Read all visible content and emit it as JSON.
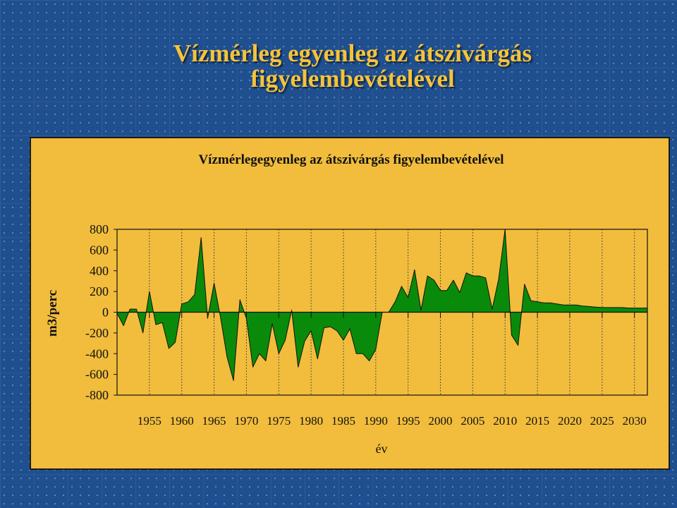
{
  "slide": {
    "title_line1": "Vízmérleg egyenleg az átszivárgás",
    "title_line2": "figyelembevételével"
  },
  "colors": {
    "background": "#1f4f8e",
    "title": "#f5c33a",
    "panel": "#f2bd3c",
    "area_fill": "#0a8a0a"
  },
  "chart_data": {
    "type": "area",
    "title": "Vízmérlegegyenleg az átszivárgás figyelembevételével",
    "xlabel": "év",
    "ylabel": "m3/perc",
    "xlim": [
      1950,
      2032
    ],
    "ylim": [
      -800,
      800
    ],
    "xticks": [
      1955,
      1960,
      1965,
      1970,
      1975,
      1980,
      1985,
      1990,
      1995,
      2000,
      2005,
      2010,
      2015,
      2020,
      2025,
      2030
    ],
    "yticks": [
      800,
      600,
      400,
      200,
      0,
      -200,
      -400,
      -600,
      -800
    ],
    "grid": true,
    "legend": "none",
    "x": [
      1950,
      1951,
      1952,
      1953,
      1954,
      1955,
      1956,
      1957,
      1958,
      1959,
      1960,
      1961,
      1962,
      1963,
      1964,
      1965,
      1966,
      1967,
      1968,
      1969,
      1970,
      1971,
      1972,
      1973,
      1974,
      1975,
      1976,
      1977,
      1978,
      1979,
      1980,
      1981,
      1982,
      1983,
      1984,
      1985,
      1986,
      1987,
      1988,
      1989,
      1990,
      1991,
      1992,
      1993,
      1994,
      1995,
      1996,
      1997,
      1998,
      1999,
      2000,
      2001,
      2002,
      2003,
      2004,
      2005,
      2006,
      2007,
      2008,
      2009,
      2010,
      2011,
      2012,
      2013,
      2014,
      2015,
      2016,
      2017,
      2018,
      2019,
      2020,
      2021,
      2022,
      2023,
      2024,
      2025,
      2026,
      2027,
      2028,
      2029,
      2030,
      2031,
      2032
    ],
    "y": [
      -10,
      -130,
      30,
      30,
      -200,
      200,
      -120,
      -100,
      -350,
      -290,
      80,
      100,
      170,
      720,
      -60,
      280,
      -50,
      -430,
      -660,
      120,
      -60,
      -530,
      -400,
      -470,
      -110,
      -400,
      -270,
      20,
      -530,
      -280,
      -180,
      -450,
      -150,
      -140,
      -180,
      -270,
      -160,
      -400,
      -400,
      -470,
      -360,
      0,
      0,
      100,
      250,
      140,
      410,
      20,
      350,
      310,
      210,
      210,
      310,
      190,
      380,
      350,
      350,
      330,
      30,
      320,
      800,
      -220,
      -320,
      270,
      110,
      100,
      90,
      90,
      80,
      70,
      70,
      70,
      60,
      55,
      50,
      45,
      45,
      45,
      45,
      40,
      40,
      40,
      40
    ]
  }
}
